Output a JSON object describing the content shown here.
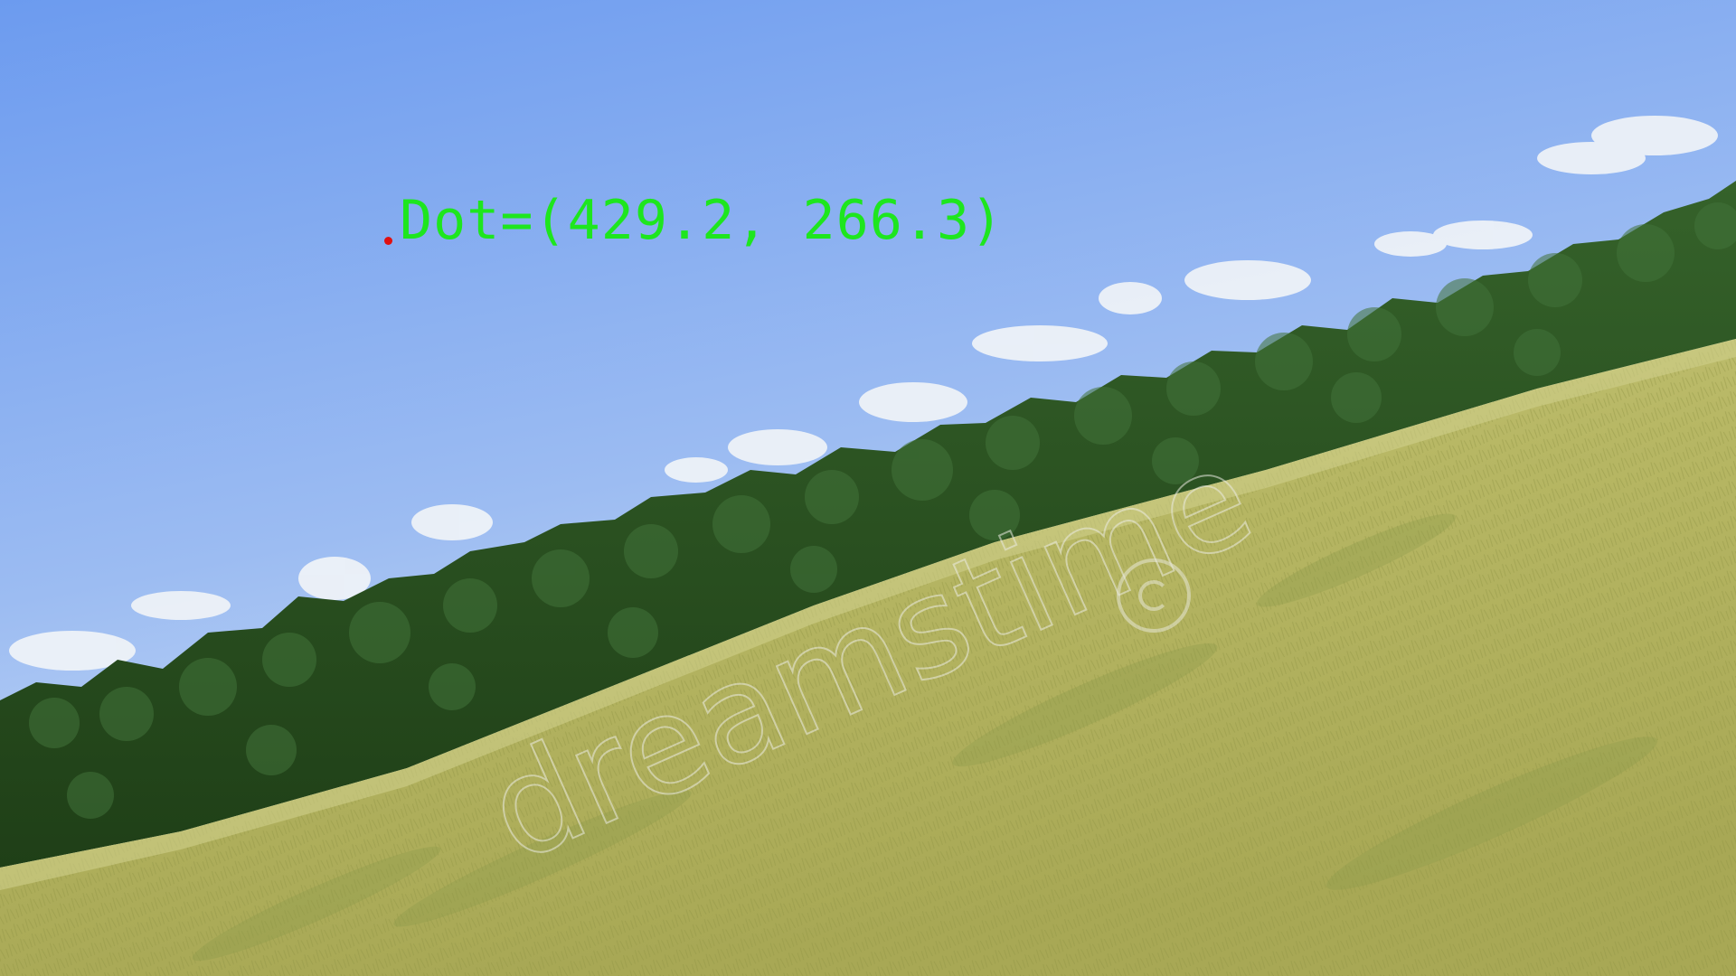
{
  "overlay": {
    "dot_label": "Dot=(429.2, 266.3)",
    "dot_color": "#e01010",
    "label_color": "#1ee61e"
  },
  "watermark": {
    "text": "dreamstime"
  },
  "scene": {
    "sky_color_top": "#6f9ef0",
    "sky_color_bottom": "#c9dcf6",
    "forest_color": "#2f5a22",
    "meadow_color": "#b9b96a"
  }
}
